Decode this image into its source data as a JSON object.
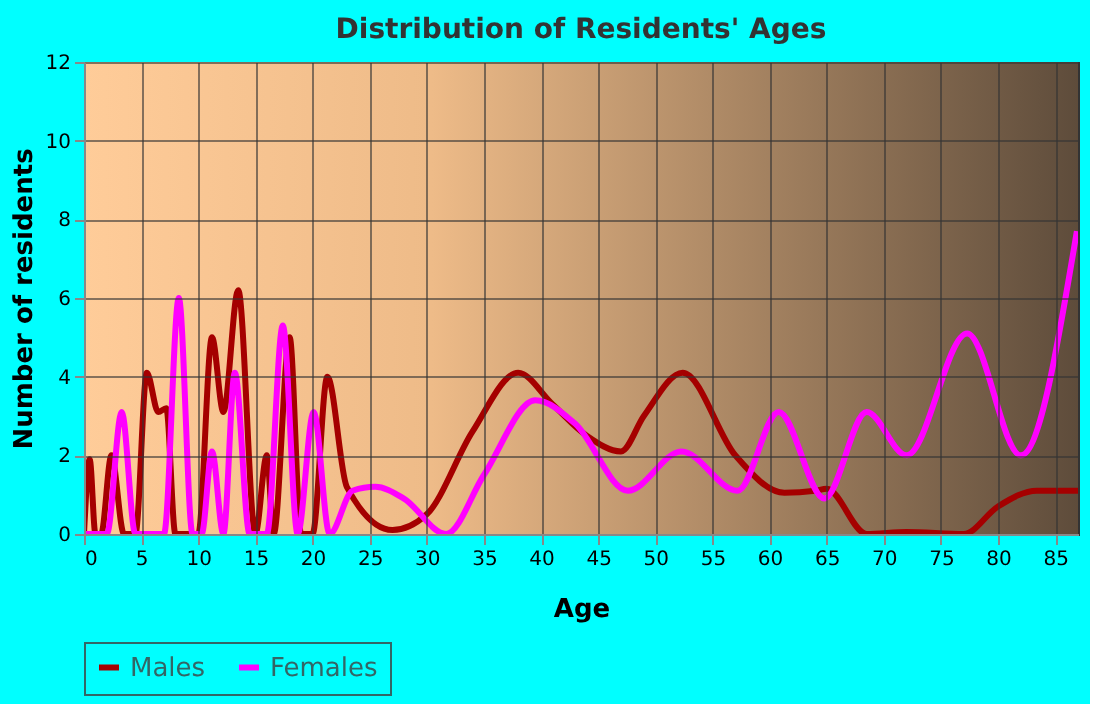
{
  "chart_data": {
    "type": "line",
    "title": "Distribution of Residents' Ages",
    "xlabel": "Age",
    "ylabel": "Number of residents",
    "xlim": [
      0,
      87
    ],
    "ylim": [
      0,
      12
    ],
    "xticks": [
      0,
      5,
      10,
      15,
      20,
      25,
      30,
      35,
      40,
      45,
      50,
      55,
      60,
      65,
      70,
      75,
      80,
      85
    ],
    "yticks": [
      0,
      2,
      4,
      6,
      8,
      10,
      12
    ],
    "grid": true,
    "legend": "bottom",
    "line_style": "solid",
    "marker": "none",
    "series": [
      {
        "name": "Males",
        "color": "#a50000",
        "x": [
          0,
          0.5,
          1,
          1.5,
          2.4,
          3.5,
          4.5,
          5.5,
          6.5,
          7.2,
          8,
          9,
          10,
          11.2,
          12.2,
          13.5,
          15,
          16,
          16.6,
          18,
          19,
          20,
          21.3,
          23,
          27,
          30,
          34,
          38,
          41,
          44,
          47,
          49,
          52.4,
          57,
          61.3,
          64,
          65,
          68.5,
          72,
          77,
          80,
          83.4,
          87
        ],
        "values": [
          0,
          1.9,
          0,
          0,
          2,
          0,
          0,
          4.1,
          3.1,
          3.2,
          0,
          0,
          0,
          5,
          3.1,
          6.2,
          0,
          2,
          0,
          5,
          0,
          0,
          4,
          1.2,
          0.1,
          0.5,
          2.6,
          4.1,
          3.3,
          2.5,
          2.1,
          3,
          4.1,
          2,
          1.05,
          1.1,
          1.15,
          0,
          0.05,
          0,
          0.7,
          1.1,
          1.1
        ]
      },
      {
        "name": "Females",
        "color": "#ff00ff",
        "x": [
          0,
          2,
          3.3,
          4.5,
          6,
          7,
          8.3,
          9.5,
          10.3,
          11.2,
          12.2,
          13.2,
          14.5,
          16,
          17.4,
          18.7,
          20.1,
          21.5,
          23.5,
          25.5,
          28,
          31.7,
          35,
          39.5,
          43,
          47.6,
          52.3,
          57.2,
          60.8,
          64.8,
          68.5,
          72,
          77.3,
          82,
          86.9
        ],
        "values": [
          0,
          0,
          3.1,
          0,
          0,
          0,
          6,
          0,
          0,
          2.1,
          0,
          4.1,
          0,
          0,
          5.3,
          0,
          3.1,
          0,
          1.1,
          1.2,
          0.9,
          0,
          1.5,
          3.4,
          2.8,
          1.1,
          2.1,
          1.1,
          3.1,
          0.9,
          3.1,
          2,
          5.1,
          2,
          7.7
        ]
      }
    ]
  }
}
